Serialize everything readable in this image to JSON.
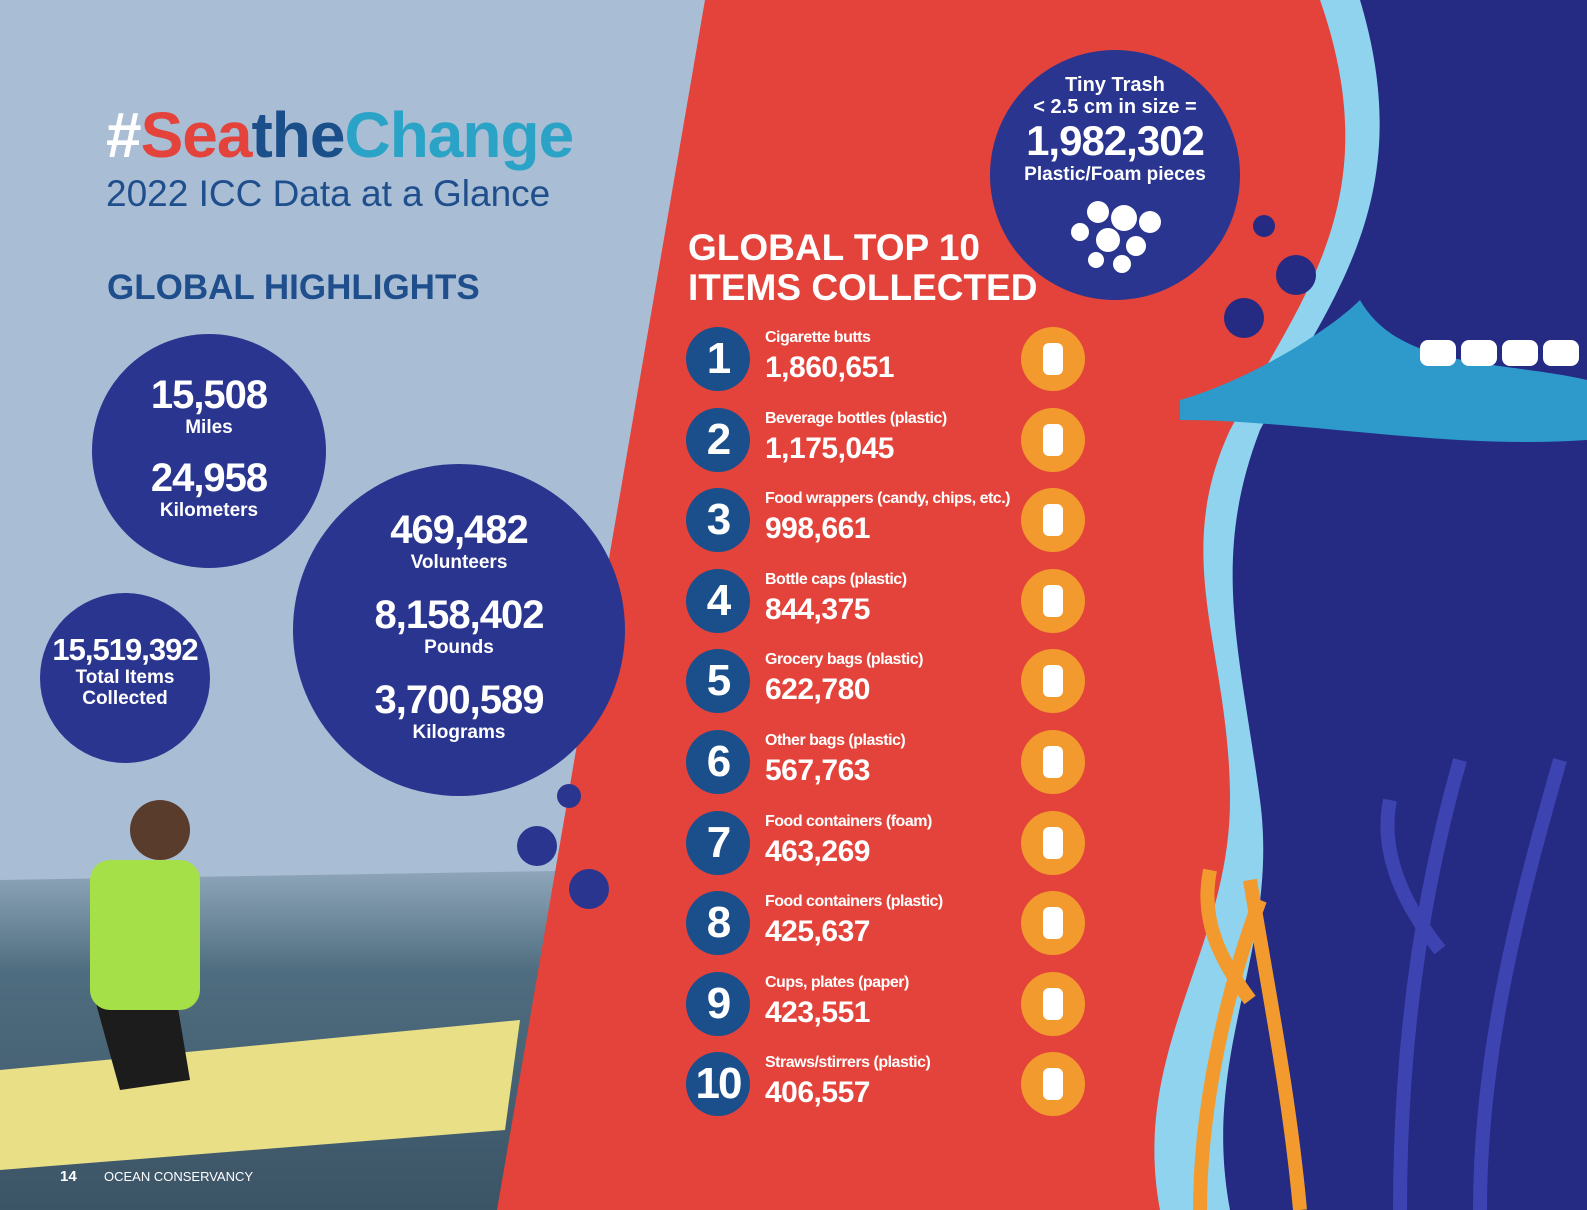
{
  "header": {
    "title_parts": [
      "#",
      "Sea",
      "the",
      "Change"
    ],
    "subtitle": "2022 ICC Data at a Glance"
  },
  "highlights": {
    "heading": "GLOBAL HIGHLIGHTS",
    "distance": [
      {
        "value": "15,508",
        "label": "Miles"
      },
      {
        "value": "24,958",
        "label": "Kilometers"
      }
    ],
    "total": {
      "value": "15,519,392",
      "label_lines": [
        "Total Items",
        "Collected"
      ]
    },
    "effort": [
      {
        "value": "469,482",
        "label": "Volunteers"
      },
      {
        "value": "8,158,402",
        "label": "Pounds"
      },
      {
        "value": "3,700,589",
        "label": "Kilograms"
      }
    ]
  },
  "top_items": {
    "heading_lines": [
      "GLOBAL TOP 10",
      "ITEMS COLLECTED"
    ],
    "items": [
      {
        "rank": "1",
        "name": "Cigarette butts",
        "count": "1,860,651"
      },
      {
        "rank": "2",
        "name": "Beverage bottles (plastic)",
        "count": "1,175,045"
      },
      {
        "rank": "3",
        "name": "Food wrappers (candy, chips, etc.)",
        "count": "998,661"
      },
      {
        "rank": "4",
        "name": "Bottle caps (plastic)",
        "count": "844,375"
      },
      {
        "rank": "5",
        "name": "Grocery bags (plastic)",
        "count": "622,780"
      },
      {
        "rank": "6",
        "name": "Other bags (plastic)",
        "count": "567,763"
      },
      {
        "rank": "7",
        "name": "Food containers (foam)",
        "count": "463,269"
      },
      {
        "rank": "8",
        "name": "Food containers (plastic)",
        "count": "425,637"
      },
      {
        "rank": "9",
        "name": "Cups, plates (paper)",
        "count": "423,551"
      },
      {
        "rank": "10",
        "name": "Straws/stirrers (plastic)",
        "count": "406,557"
      }
    ]
  },
  "tiny_trash": {
    "title": "Tiny Trash",
    "subtitle": "< 2.5 cm in size =",
    "value": "1,982,302",
    "label": "Plastic/Foam pieces"
  },
  "footer": {
    "page": "14",
    "publication": "OCEAN CONSERVANCY"
  }
}
